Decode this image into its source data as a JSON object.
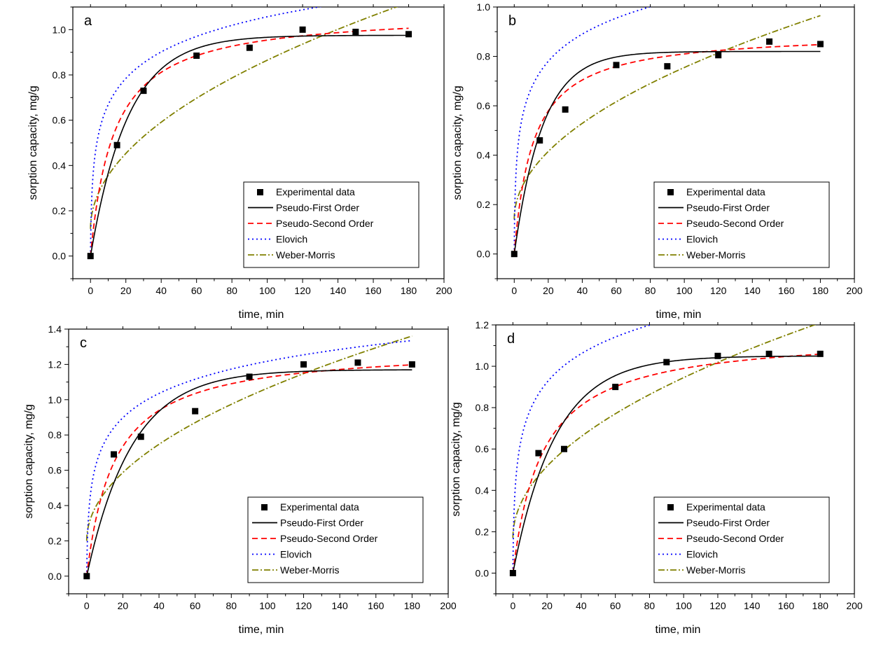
{
  "legend_entries": {
    "experimental": "Experimental data",
    "pfo": "Pseudo-First Order",
    "pso": "Pseudo-Second Order",
    "elovich": "Elovich",
    "weber": "Weber-Morris"
  },
  "colors": {
    "experimental": "#000000",
    "pfo": "#000000",
    "pso": "#ff0000",
    "elovich": "#0000ff",
    "weber": "#808000"
  },
  "chart_data": [
    {
      "type": "scatter",
      "panel_label": "a",
      "xlabel": "time, min",
      "ylabel": "sorption capacity, mg/g",
      "xlim": [
        -10,
        200
      ],
      "ylim": [
        -0.1,
        1.1
      ],
      "xticks": [
        "0",
        "20",
        "40",
        "60",
        "80",
        "100",
        "120",
        "140",
        "160",
        "180",
        "200"
      ],
      "yticks": [
        "0.0",
        "0.2",
        "0.4",
        "0.6",
        "0.8",
        "1.0"
      ],
      "legend_position": "bottom-right",
      "experimental": {
        "x": [
          0,
          15,
          30,
          60,
          90,
          120,
          150,
          180
        ],
        "y": [
          0.0,
          0.49,
          0.73,
          0.885,
          0.92,
          1.0,
          0.99,
          0.98
        ]
      },
      "models": {
        "pfo": {
          "qe": 0.975,
          "k1": 0.047
        },
        "pso": {
          "qe": 1.08,
          "k2": 0.07
        },
        "elovich": {
          "a": 0.17,
          "b": 5.0
        },
        "weber": {
          "kid": 0.0745,
          "c": 0.12
        }
      }
    },
    {
      "type": "scatter",
      "panel_label": "b",
      "xlabel": "time, min",
      "ylabel": "sorption capacity, mg/g",
      "xlim": [
        -10,
        200
      ],
      "ylim": [
        -0.1,
        1.0
      ],
      "xticks": [
        "0",
        "20",
        "40",
        "60",
        "80",
        "100",
        "120",
        "140",
        "160",
        "180",
        "200"
      ],
      "yticks": [
        "0.0",
        "0.2",
        "0.4",
        "0.6",
        "0.8",
        "1.0"
      ],
      "legend_position": "bottom-right",
      "experimental": {
        "x": [
          0,
          15,
          30,
          60,
          90,
          120,
          150,
          180
        ],
        "y": [
          0.0,
          0.46,
          0.585,
          0.765,
          0.76,
          0.805,
          0.86,
          0.85
        ]
      },
      "models": {
        "pfo": {
          "qe": 0.82,
          "k1": 0.06
        },
        "pso": {
          "qe": 0.9,
          "k2": 0.1
        },
        "elovich": {
          "a": 0.16,
          "b": 6.5
        },
        "weber": {
          "kid": 0.0615,
          "c": 0.14
        }
      }
    },
    {
      "type": "scatter",
      "panel_label": "c",
      "xlabel": "time, min",
      "ylabel": "sorption capacity, mg/g",
      "xlim": [
        -10,
        200
      ],
      "ylim": [
        -0.1,
        1.4
      ],
      "xticks": [
        "0",
        "20",
        "40",
        "60",
        "80",
        "100",
        "120",
        "140",
        "160",
        "180",
        "200"
      ],
      "yticks": [
        "0.0",
        "0.2",
        "0.4",
        "0.6",
        "0.8",
        "1.0",
        "1.2",
        "1.4"
      ],
      "legend_position": "bottom-right",
      "experimental": {
        "x": [
          0,
          15,
          30,
          60,
          90,
          120,
          150,
          180
        ],
        "y": [
          0.0,
          0.69,
          0.79,
          0.935,
          1.13,
          1.2,
          1.21,
          1.2
        ]
      },
      "models": {
        "pfo": {
          "qe": 1.17,
          "k1": 0.04
        },
        "pso": {
          "qe": 1.3,
          "k2": 0.05
        },
        "elovich": {
          "a": 0.2,
          "b": 4.4
        },
        "weber": {
          "kid": 0.0865,
          "c": 0.2
        }
      }
    },
    {
      "type": "scatter",
      "panel_label": "d",
      "xlabel": "time, min",
      "ylabel": "sorption capacity, mg/g",
      "xlim": [
        -10,
        200
      ],
      "ylim": [
        -0.1,
        1.2
      ],
      "xticks": [
        "0",
        "20",
        "40",
        "60",
        "80",
        "100",
        "120",
        "140",
        "160",
        "180",
        "200"
      ],
      "yticks": [
        "0.0",
        "0.2",
        "0.4",
        "0.6",
        "0.8",
        "1.0",
        "1.2"
      ],
      "legend_position": "bottom-right",
      "experimental": {
        "x": [
          0,
          15,
          30,
          60,
          90,
          120,
          150,
          180
        ],
        "y": [
          0.0,
          0.58,
          0.6,
          0.9,
          1.02,
          1.05,
          1.06,
          1.06
        ]
      },
      "models": {
        "pfo": {
          "qe": 1.05,
          "k1": 0.04
        },
        "pso": {
          "qe": 1.16,
          "k2": 0.05
        },
        "elovich": {
          "a": 0.2,
          "b": 5.0
        },
        "weber": {
          "kid": 0.0775,
          "c": 0.17
        }
      }
    }
  ]
}
